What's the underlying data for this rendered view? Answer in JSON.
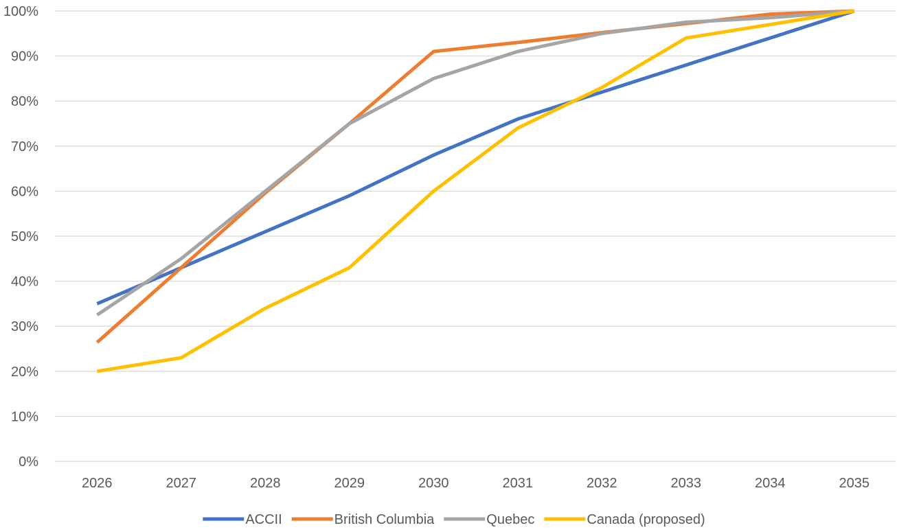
{
  "chart_data": {
    "type": "line",
    "title": "",
    "xlabel": "",
    "ylabel": "",
    "categories": [
      "2026",
      "2027",
      "2028",
      "2029",
      "2030",
      "2031",
      "2032",
      "2033",
      "2034",
      "2035"
    ],
    "ylim": [
      0,
      100
    ],
    "yticks": [
      "0%",
      "10%",
      "20%",
      "30%",
      "40%",
      "50%",
      "60%",
      "70%",
      "80%",
      "90%",
      "100%"
    ],
    "grid": "horizontal",
    "legend_position": "bottom",
    "series": [
      {
        "name": "ACCII",
        "color": "#4472C4",
        "values": [
          35,
          43,
          51,
          59,
          68,
          76,
          82,
          88,
          94,
          100
        ]
      },
      {
        "name": "British Columbia",
        "color": "#ED7D31",
        "values": [
          26.4,
          43,
          59.6,
          75,
          91,
          93,
          95.2,
          97.2,
          99.3,
          100
        ]
      },
      {
        "name": "Quebec",
        "color": "#A5A5A5",
        "values": [
          32.5,
          45,
          60,
          75,
          85,
          91,
          95,
          97.5,
          98.5,
          100
        ]
      },
      {
        "name": "Canada (proposed)",
        "color": "#FFC000",
        "values": [
          20,
          23,
          34,
          43,
          60,
          74,
          83,
          94,
          97,
          100
        ]
      }
    ]
  }
}
